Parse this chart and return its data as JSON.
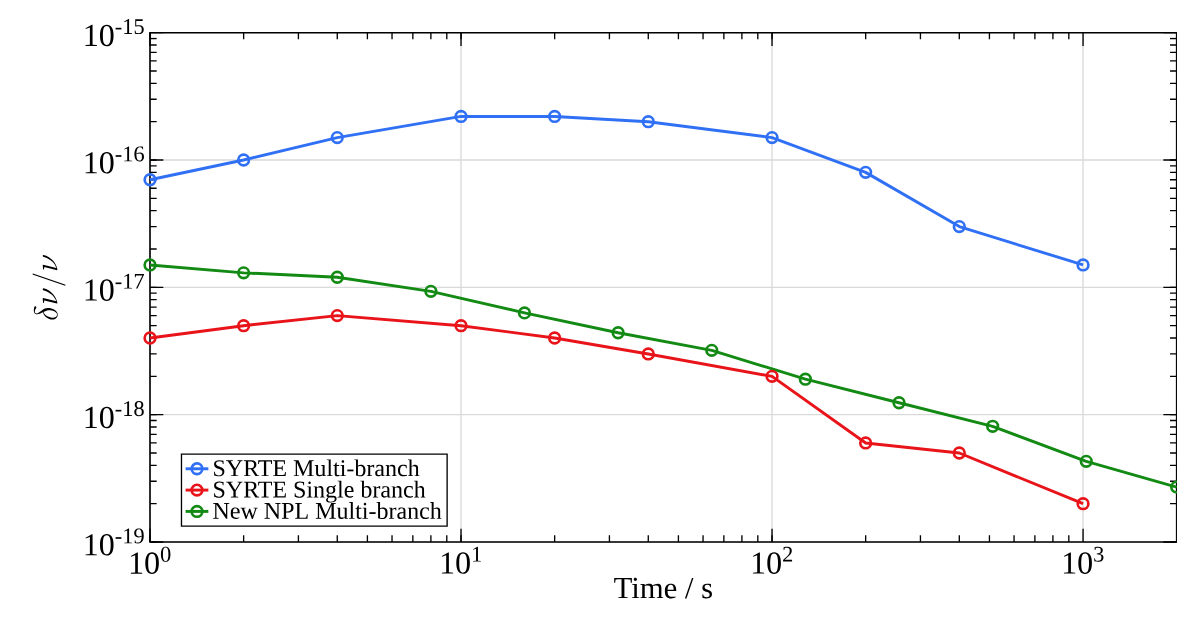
{
  "chart_data": {
    "type": "line",
    "xlabel": "Time / s",
    "ylabel": "\\delta\\nu/\\nu",
    "log": "xy",
    "grid": true,
    "legend": "bottom left",
    "marker": "circle",
    "line_style": "solid",
    "xlim": [
      1,
      2000
    ],
    "ylim": [
      1e-19,
      1e-15
    ],
    "xticks": [
      {
        "value": 1,
        "label": "10$^{0}$"
      },
      {
        "value": 10,
        "label": "10$^{1}$"
      },
      {
        "value": 100,
        "label": "10$^{2}$"
      },
      {
        "value": 1000,
        "label": "10$^{3}$"
      }
    ],
    "yticks": [
      {
        "value": 1e-19,
        "label": "10$^{-19}$"
      },
      {
        "value": 1e-18,
        "label": "10$^{-18}$"
      },
      {
        "value": 1e-17,
        "label": "10$^{-17}$"
      },
      {
        "value": 1e-16,
        "label": "10$^{-16}$"
      },
      {
        "value": 1e-15,
        "label": "10$^{-15}$"
      }
    ],
    "series": [
      {
        "name": "SYRTE Multi-branch",
        "color": "#3070f5",
        "x": [
          1,
          2,
          4,
          10,
          20,
          40,
          100,
          200,
          400,
          1000
        ],
        "values": [
          7e-17,
          1e-16,
          1.5e-16,
          2.2e-16,
          2.2e-16,
          2e-16,
          1.5e-16,
          8e-17,
          3e-17,
          1.5e-17
        ]
      },
      {
        "name": "SYRTE Single branch",
        "color": "#e8141a",
        "x": [
          1,
          2,
          4,
          10,
          20,
          40,
          100,
          200,
          400,
          1000
        ],
        "values": [
          4e-18,
          5e-18,
          6e-18,
          5e-18,
          4e-18,
          3e-18,
          2e-18,
          6e-19,
          5e-19,
          2e-19
        ]
      },
      {
        "name": "New NPL Multi-branch",
        "color": "#138a13",
        "x": [
          1,
          2,
          4,
          8,
          16,
          32,
          64,
          128,
          256,
          512,
          1024,
          2000
        ],
        "values": [
          1.5e-17,
          1.3e-17,
          1.2e-17,
          9.3e-18,
          6.3e-18,
          4.4e-18,
          3.2e-18,
          1.9e-18,
          1.24e-18,
          8.1e-19,
          4.3e-19,
          2.7e-19
        ]
      }
    ]
  }
}
